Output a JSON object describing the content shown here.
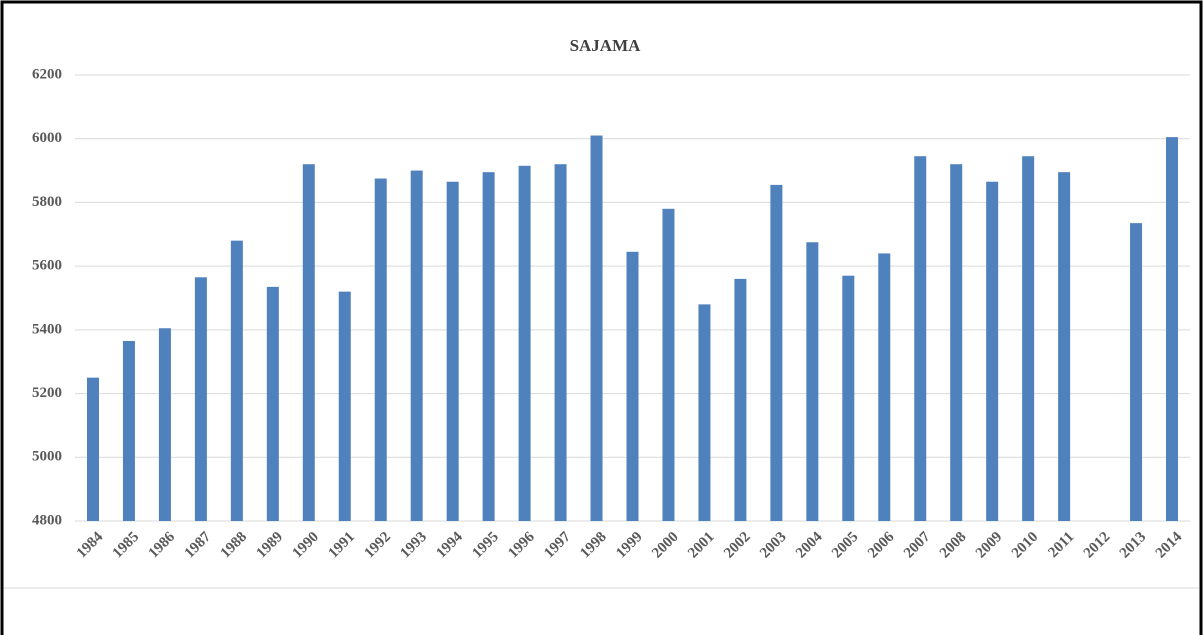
{
  "chart_data": {
    "type": "bar",
    "title": "SAJAMA",
    "categories": [
      "1984",
      "1985",
      "1986",
      "1987",
      "1988",
      "1989",
      "1990",
      "1991",
      "1992",
      "1993",
      "1994",
      "1995",
      "1996",
      "1997",
      "1998",
      "1999",
      "2000",
      "2001",
      "2002",
      "2003",
      "2004",
      "2005",
      "2006",
      "2007",
      "2008",
      "2009",
      "2010",
      "2011",
      "2012",
      "2013",
      "2014"
    ],
    "values": [
      5250,
      5365,
      5405,
      5565,
      5680,
      5535,
      5920,
      5520,
      5875,
      5900,
      5865,
      5895,
      5915,
      5920,
      6010,
      5645,
      5780,
      5480,
      5560,
      5855,
      5675,
      5570,
      5640,
      5945,
      5920,
      5865,
      5945,
      5895,
      null,
      5735,
      6005
    ],
    "color": "#4f81bd",
    "ylim": [
      4800,
      6200
    ],
    "yticks": [
      4800,
      5000,
      5200,
      5400,
      5600,
      5800,
      6000,
      6200
    ],
    "grid": true
  }
}
